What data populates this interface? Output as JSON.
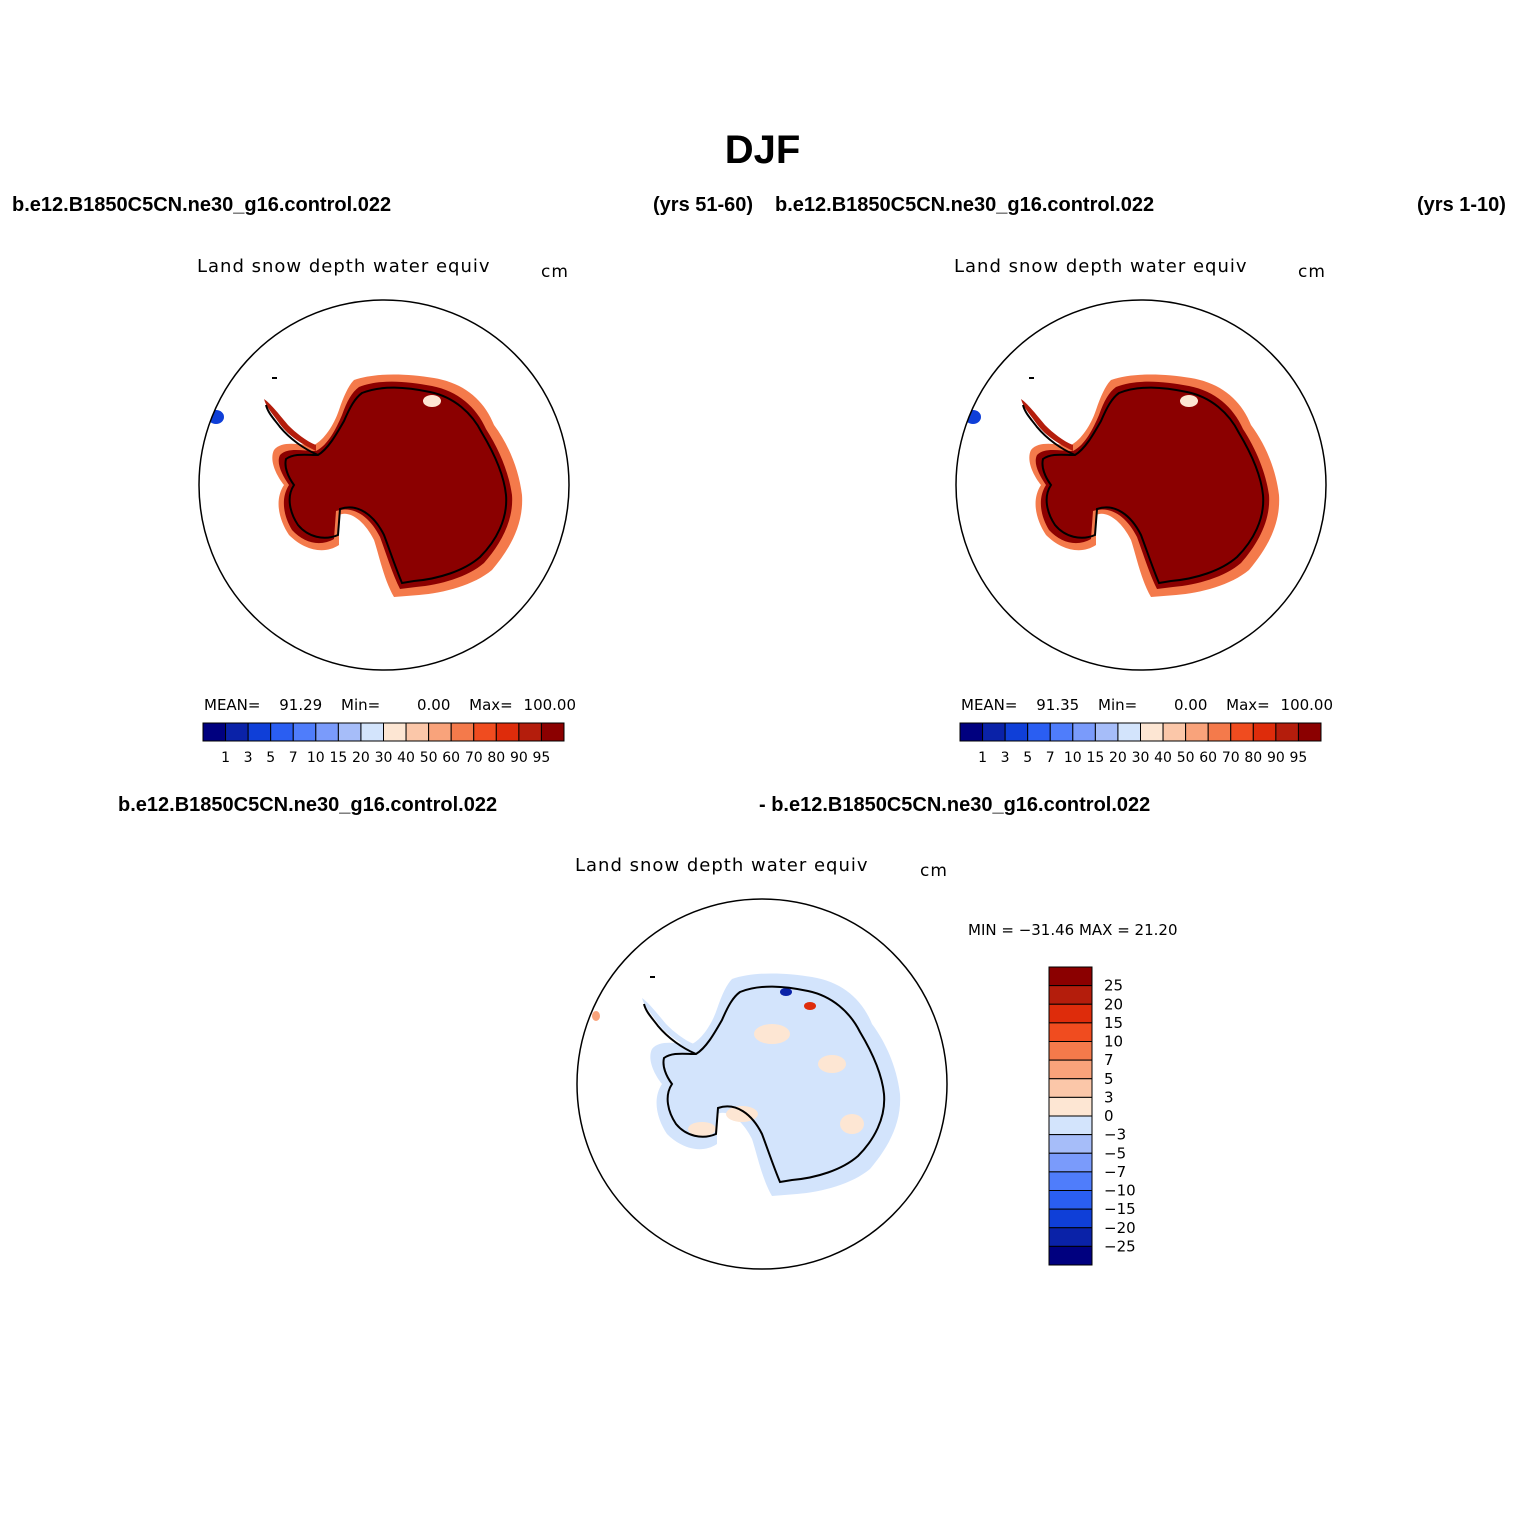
{
  "figure": {
    "season": "DJF"
  },
  "panels": [
    {
      "case_left": "b.e12.B1850C5CN.ne30_g16.control.022",
      "years": "(yrs 51-60)",
      "title": "Land snow depth water equiv",
      "units": "cm",
      "stats": {
        "mean_label": "MEAN=",
        "mean": "91.29",
        "min_label": "Min=",
        "min": "0.00",
        "max_label": "Max=",
        "max": "100.00"
      }
    },
    {
      "case_left": "b.e12.B1850C5CN.ne30_g16.control.022",
      "years": "(yrs 1-10)",
      "title": "Land snow depth water equiv",
      "units": "cm",
      "stats": {
        "mean_label": "MEAN=",
        "mean": "91.35",
        "min_label": "Min=",
        "min": "0.00",
        "max_label": "Max=",
        "max": "100.00"
      }
    }
  ],
  "diff_panel": {
    "case_a": "b.e12.B1850C5CN.ne30_g16.control.022",
    "case_b": "- b.e12.B1850C5CN.ne30_g16.control.022",
    "title": "Land snow depth water equiv",
    "units": "cm",
    "minmax": "MIN = −31.46  MAX =   21.20"
  },
  "legends": {
    "abs": {
      "levels": [
        "1",
        "3",
        "5",
        "7",
        "10",
        "15",
        "20",
        "30",
        "40",
        "50",
        "60",
        "70",
        "80",
        "90",
        "95"
      ],
      "colors": [
        "#00007f",
        "#0a22a8",
        "#0f3fd8",
        "#2a5ef2",
        "#4f7dfb",
        "#7a9bfb",
        "#a6bdf9",
        "#d3e4fc",
        "#fde6d3",
        "#fbc7a9",
        "#f9a37b",
        "#f47a4b",
        "#f04c1f",
        "#de2c0b",
        "#b41d0c",
        "#8b0000"
      ]
    },
    "diff": {
      "levels": [
        "25",
        "20",
        "15",
        "10",
        "7",
        "5",
        "3",
        "0",
        "−3",
        "−5",
        "−7",
        "−10",
        "−15",
        "−20",
        "−25"
      ],
      "colors": [
        "#8b0000",
        "#b41d0c",
        "#de2c0b",
        "#f04c1f",
        "#f47a4b",
        "#f9a37b",
        "#fbc7a9",
        "#fde6d3",
        "#d3e4fc",
        "#a6bdf9",
        "#7a9bfb",
        "#4f7dfb",
        "#2a5ef2",
        "#0f3fd8",
        "#0a22a8",
        "#00007f"
      ]
    }
  }
}
